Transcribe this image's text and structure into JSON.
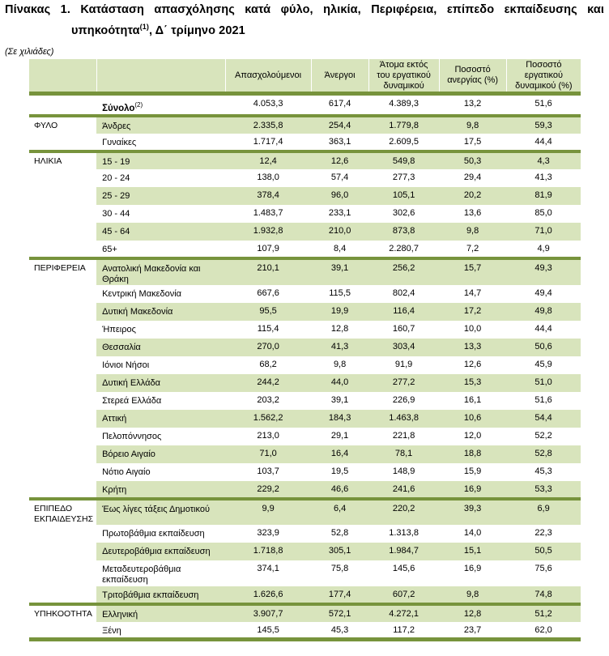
{
  "title": {
    "line1_words": [
      "Πίνακας",
      "1.",
      "Κατάσταση",
      "απασχόλησης",
      "κατά",
      "φύλο,",
      "ηλικία,",
      "Περιφέρεια,",
      "επίπεδο",
      "εκπαίδευσης",
      "και"
    ],
    "line2_pre": "υπηκοότητα",
    "line2_sup": "(1)",
    "line2_post": ", Δ΄ τρίμηνο 2021"
  },
  "unit_note": "(Σε χιλιάδες)",
  "columns": [
    "Απασχολούμενοι",
    "Άνεργοι",
    "Άτομα εκτός του εργατικού δυναμικού",
    "Ποσοστό ανεργίας (%)",
    "Ποσοστό εργατικού δυναμικού (%)"
  ],
  "colors": {
    "shade": "#d8e4bc",
    "rule": "#77933c"
  },
  "groups": [
    {
      "name": "",
      "rows": [
        {
          "label": "Σύνολο",
          "sup": "(2)",
          "bold": true,
          "values": [
            "4.053,3",
            "617,4",
            "4.389,3",
            "13,2",
            "51,6"
          ]
        }
      ]
    },
    {
      "name": "ΦΥΛΟ",
      "rows": [
        {
          "label": "Άνδρες",
          "values": [
            "2.335,8",
            "254,4",
            "1.779,8",
            "9,8",
            "59,3"
          ]
        },
        {
          "label": "Γυναίκες",
          "values": [
            "1.717,4",
            "363,1",
            "2.609,5",
            "17,5",
            "44,4"
          ]
        }
      ]
    },
    {
      "name": "ΗΛΙΚΙΑ",
      "rows": [
        {
          "label": "15 - 19",
          "values": [
            "12,4",
            "12,6",
            "549,8",
            "50,3",
            "4,3"
          ]
        },
        {
          "label": "20 - 24",
          "values": [
            "138,0",
            "57,4",
            "277,3",
            "29,4",
            "41,3"
          ]
        },
        {
          "label": "25 - 29",
          "values": [
            "378,4",
            "96,0",
            "105,1",
            "20,2",
            "81,9"
          ]
        },
        {
          "label": "30 - 44",
          "values": [
            "1.483,7",
            "233,1",
            "302,6",
            "13,6",
            "85,0"
          ]
        },
        {
          "label": "45 - 64",
          "values": [
            "1.932,8",
            "210,0",
            "873,8",
            "9,8",
            "71,0"
          ]
        },
        {
          "label": "65+",
          "values": [
            "107,9",
            "8,4",
            "2.280,7",
            "7,2",
            "4,9"
          ]
        }
      ]
    },
    {
      "name": "ΠΕΡΙΦΕΡΕΙΑ",
      "rows": [
        {
          "label": "Ανατολική Μακεδονία και Θράκη",
          "tall": true,
          "values": [
            "210,1",
            "39,1",
            "256,2",
            "15,7",
            "49,3"
          ]
        },
        {
          "label": "Κεντρική Μακεδονία",
          "values": [
            "667,6",
            "115,5",
            "802,4",
            "14,7",
            "49,4"
          ]
        },
        {
          "label": "Δυτική Μακεδονία",
          "values": [
            "95,5",
            "19,9",
            "116,4",
            "17,2",
            "49,8"
          ]
        },
        {
          "label": "Ήπειρος",
          "values": [
            "115,4",
            "12,8",
            "160,7",
            "10,0",
            "44,4"
          ]
        },
        {
          "label": "Θεσσαλία",
          "values": [
            "270,0",
            "41,3",
            "303,4",
            "13,3",
            "50,6"
          ]
        },
        {
          "label": "Ιόνιοι Νήσοι",
          "values": [
            "68,2",
            "9,8",
            "91,9",
            "12,6",
            "45,9"
          ]
        },
        {
          "label": "Δυτική Ελλάδα",
          "values": [
            "244,2",
            "44,0",
            "277,2",
            "15,3",
            "51,0"
          ]
        },
        {
          "label": "Στερεά Ελλάδα",
          "values": [
            "203,2",
            "39,1",
            "226,9",
            "16,1",
            "51,6"
          ]
        },
        {
          "label": "Αττική",
          "values": [
            "1.562,2",
            "184,3",
            "1.463,8",
            "10,6",
            "54,4"
          ]
        },
        {
          "label": "Πελοπόννησος",
          "values": [
            "213,0",
            "29,1",
            "221,8",
            "12,0",
            "52,2"
          ]
        },
        {
          "label": "Βόρειο Αιγαίο",
          "values": [
            "71,0",
            "16,4",
            "78,1",
            "18,8",
            "52,8"
          ]
        },
        {
          "label": "Νότιο Αιγαίο",
          "values": [
            "103,7",
            "19,5",
            "148,9",
            "15,9",
            "45,3"
          ]
        },
        {
          "label": "Κρήτη",
          "values": [
            "229,2",
            "46,6",
            "241,6",
            "16,9",
            "53,3"
          ]
        }
      ]
    },
    {
      "name": "ΕΠΙΠΕΔΟ ΕΚΠΑΙΔΕΥΣΗΣ",
      "rows": [
        {
          "label": "Έως λίγες τάξεις Δημοτικού",
          "values": [
            "9,9",
            "6,4",
            "220,2",
            "39,3",
            "6,9"
          ]
        },
        {
          "label": "Πρωτοβάθμια εκπαίδευση",
          "values": [
            "323,9",
            "52,8",
            "1.313,8",
            "14,0",
            "22,3"
          ]
        },
        {
          "label": "Δευτεροβάθμια εκπαίδευση",
          "values": [
            "1.718,8",
            "305,1",
            "1.984,7",
            "15,1",
            "50,5"
          ]
        },
        {
          "label": "Μεταδευτεροβάθμια εκπαίδευση",
          "tall": true,
          "values": [
            "374,1",
            "75,8",
            "145,6",
            "16,9",
            "75,6"
          ]
        },
        {
          "label": "Τριτοβάθμια εκπαίδευση",
          "values": [
            "1.626,6",
            "177,4",
            "607,2",
            "9,8",
            "74,8"
          ]
        }
      ]
    },
    {
      "name": "ΥΠΗΚΟΟΤΗΤΑ",
      "rows": [
        {
          "label": "Ελληνική",
          "values": [
            "3.907,7",
            "572,1",
            "4.272,1",
            "12,8",
            "51,2"
          ]
        },
        {
          "label": "Ξένη",
          "values": [
            "145,5",
            "45,3",
            "117,2",
            "23,7",
            "62,0"
          ]
        }
      ]
    }
  ]
}
